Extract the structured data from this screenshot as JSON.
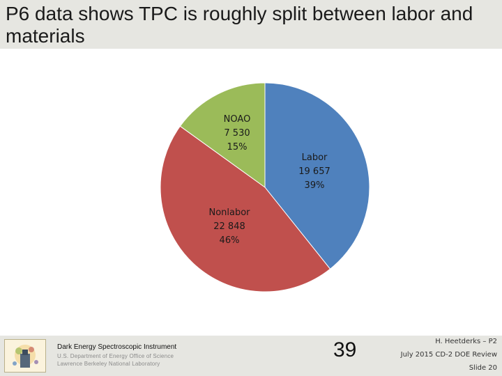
{
  "slide": {
    "title": "P6 data shows TPC is roughly split between labor and materials"
  },
  "chart_data": {
    "type": "pie",
    "categories": [
      "Labor",
      "Nonlabor",
      "NOAO"
    ],
    "values": [
      19657,
      22848,
      7530
    ],
    "percent_labels": [
      "39%",
      "46%",
      "15%"
    ],
    "value_labels": [
      "19 657",
      "22 848",
      "7 530"
    ],
    "colors": [
      "#4f81bd",
      "#c0504d",
      "#9bbb59"
    ],
    "start": "12 o'clock",
    "direction": "clockwise"
  },
  "footer": {
    "project": "Dark Energy Spectroscopic Instrument",
    "agency": "U.S. Department of Energy Office of Science",
    "lab": "Lawrence Berkeley National Laboratory",
    "page_number": "39",
    "author": "H. Heetderks – P2",
    "review": "July 2015 CD-2 DOE Review",
    "slide": "Slide 20"
  }
}
